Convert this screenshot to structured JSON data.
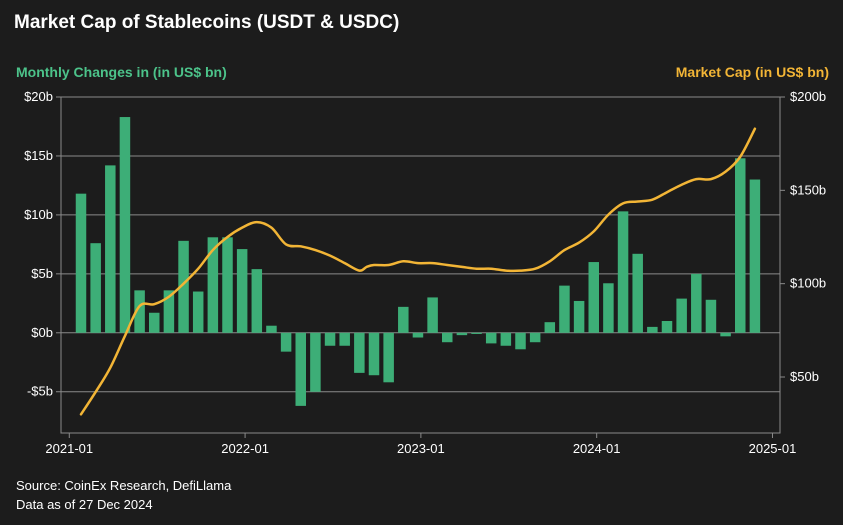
{
  "title": "Market Cap of Stablecoins (USDT & USDC)",
  "footer": {
    "source": "Source: CoinEx Research, DefiLlama",
    "date_note": "Data as of 27 Dec 2024"
  },
  "colors": {
    "bar": "#3dae77",
    "line": "#f2b536",
    "left_label": "#4cc38a",
    "right_label": "#f2b536",
    "grid": "#8a8a8a"
  },
  "chart_data": {
    "type": "bar+line",
    "y_left": {
      "label": "Monthly Changes in (in US$ bn)",
      "min": -8.5,
      "max": 20,
      "ticks": [
        -5,
        0,
        5,
        10,
        15,
        20
      ],
      "tick_labels": [
        "-$5b",
        "$0b",
        "$5b",
        "$10b",
        "$15b",
        "$20b"
      ]
    },
    "y_right": {
      "label": "Market Cap (in US$ bn)",
      "min": 20,
      "max": 200,
      "ticks": [
        50,
        100,
        150,
        200
      ],
      "tick_labels": [
        "$50b",
        "$100b",
        "$150b",
        "$200b"
      ]
    },
    "x_ticks": [
      "2021-01",
      "2022-01",
      "2023-01",
      "2024-01",
      "2025-01"
    ],
    "bars": {
      "name": "Monthly Changes",
      "values": [
        11.8,
        7.6,
        14.2,
        18.3,
        3.6,
        1.7,
        3.6,
        7.8,
        3.5,
        8.1,
        8.1,
        7.1,
        5.4,
        0.6,
        -1.6,
        -6.2,
        -5.0,
        -1.1,
        -1.1,
        -3.4,
        -3.6,
        -4.2,
        2.2,
        -0.4,
        3.0,
        -0.8,
        -0.2,
        -0.1,
        -0.9,
        -1.1,
        -1.4,
        -0.8,
        0.9,
        4.0,
        2.7,
        6.0,
        4.2,
        10.3,
        6.7,
        0.5,
        1.0,
        2.9,
        5.0,
        2.8,
        -0.3,
        14.8,
        13.0
      ]
    },
    "line": {
      "name": "Market Cap",
      "x": [
        0,
        1,
        2,
        3,
        4,
        5,
        6,
        7,
        8,
        9,
        10,
        11,
        12,
        13,
        14,
        15,
        16,
        17,
        18,
        19,
        19.5,
        20,
        21,
        22,
        23,
        24,
        25,
        26,
        27,
        28,
        29,
        30,
        31,
        32,
        33,
        34,
        35,
        36,
        37,
        38,
        39,
        40,
        41,
        42,
        43,
        44,
        45,
        46
      ],
      "values": [
        30,
        42,
        55,
        72,
        88,
        89,
        93,
        100,
        108,
        118,
        125,
        130,
        133,
        130,
        121,
        120,
        118,
        115,
        111,
        107,
        109,
        110,
        110,
        112,
        111,
        111,
        110,
        109,
        108,
        108,
        107,
        107,
        108,
        112,
        118,
        122,
        128,
        137,
        143,
        144,
        145,
        149,
        153,
        156,
        156,
        160,
        168,
        183
      ]
    }
  }
}
